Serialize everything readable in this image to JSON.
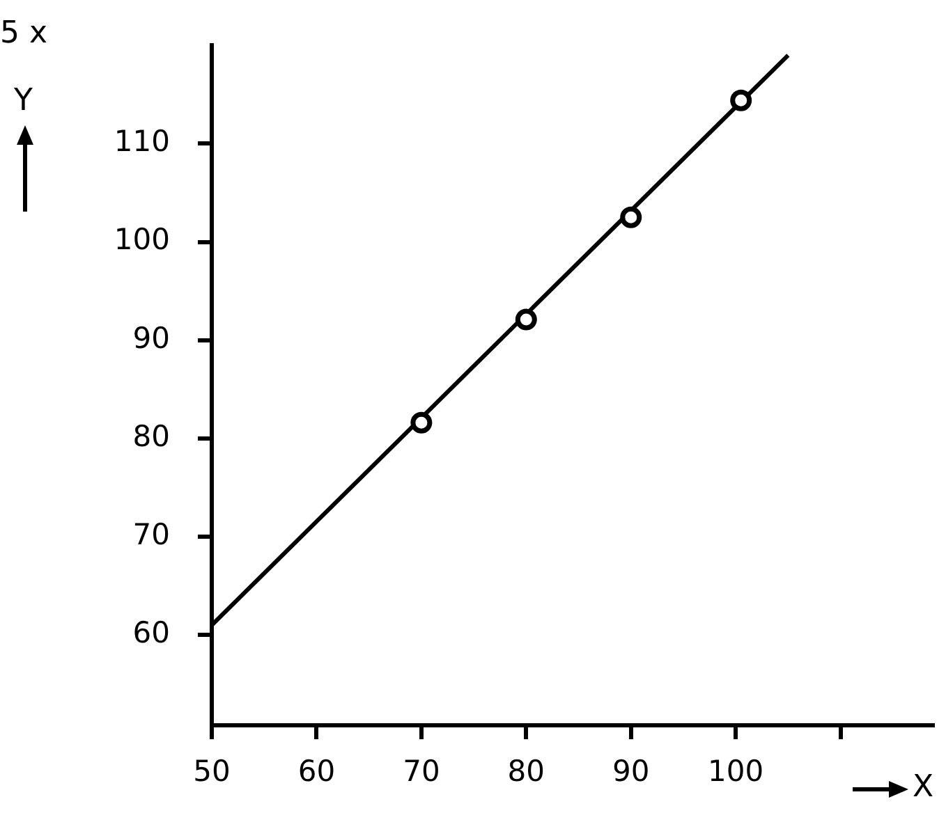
{
  "chart_data": {
    "type": "scatter",
    "xlabel": "X",
    "ylabel": "Y",
    "annotations": [
      "5 x"
    ],
    "xlim": [
      50,
      118.8
    ],
    "ylim": [
      50.8,
      120
    ],
    "xticks": [
      50,
      60,
      70,
      80,
      90,
      100,
      {
        "value": 110,
        "label": null
      }
    ],
    "yticks": [
      60,
      70,
      80,
      90,
      100,
      110
    ],
    "grid": false,
    "legend": false,
    "series": [
      {
        "type": "scatter",
        "marker": "circle",
        "color": "#000000",
        "x": [
          70,
          80,
          90,
          100.5
        ],
        "values": [
          81.6,
          92.1,
          102.5,
          114.4
        ]
      },
      {
        "type": "line",
        "marker": "none",
        "line_style": "solid",
        "color": "#000000",
        "x": [
          50,
          105
        ],
        "values": [
          61,
          119
        ]
      }
    ]
  }
}
